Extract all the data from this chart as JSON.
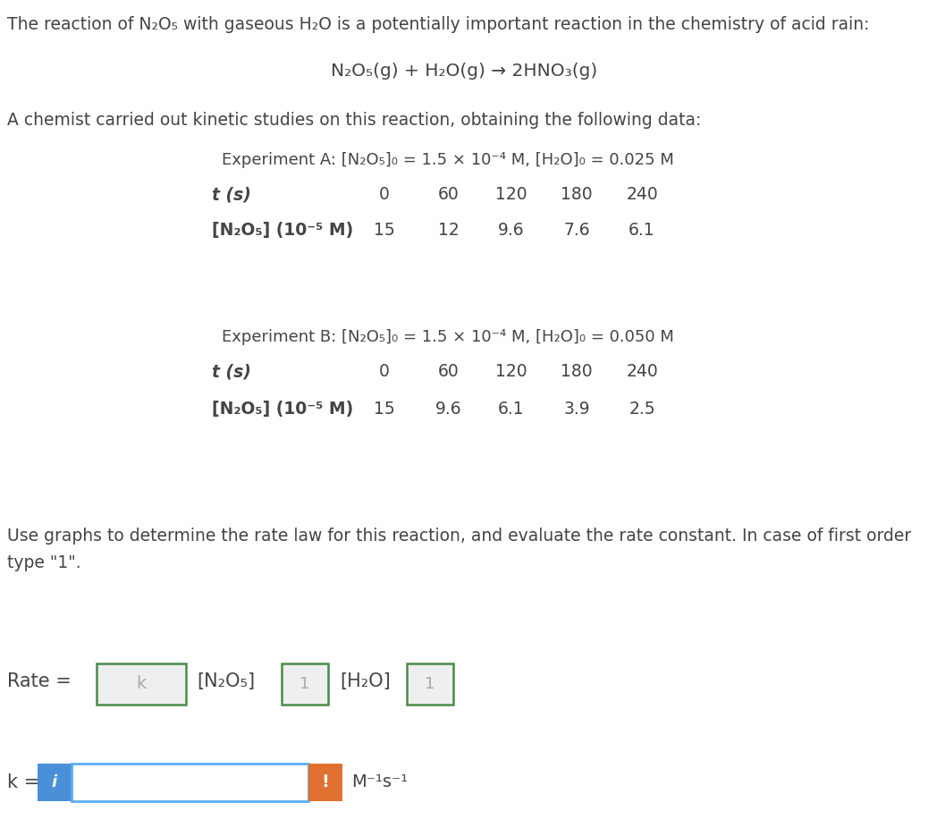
{
  "bg_color": "#ffffff",
  "text_color": "#444444",
  "line1": "The reaction of N₂O₅ with gaseous H₂O is a potentially important reaction in the chemistry of acid rain:",
  "equation": "N₂O₅(g) + H₂O(g) → 2HNO₃(g)",
  "line3": "A chemist carried out kinetic studies on this reaction, obtaining the following data:",
  "exp_a_header": "Experiment A: [N₂O₅]₀ = 1.5 × 10⁻⁴ M, [H₂O]₀ = 0.025 M",
  "exp_b_header": "Experiment B: [N₂O₅]₀ = 1.5 × 10⁻⁴ M, [H₂O]₀ = 0.050 M",
  "t_label": "t (s)",
  "conc_label": "[N₂O₅] (10⁻⁵ M)",
  "t_values": [
    "0",
    "60",
    "120",
    "180",
    "240"
  ],
  "conc_a_values": [
    "15",
    "12",
    "9.6",
    "7.6",
    "6.1"
  ],
  "conc_b_values": [
    "15",
    "9.6",
    "6.1",
    "3.9",
    "2.5"
  ],
  "use_graphs_line1": "Use graphs to determine the rate law for this reaction, and evaluate the rate constant. In case of first order",
  "use_graphs_line2": "type \"1\".",
  "rate_label": "Rate =",
  "k_label": "k =",
  "units_label": "M⁻¹s⁻¹",
  "box_border_color": "#4a8a4a",
  "box_fill_color": "#efefef",
  "box_text_k": "k",
  "box_text_1a": "1",
  "box_text_1b": "1",
  "input_border_color": "#5aacee",
  "input_fill_color": "#ffffff",
  "info_btn_color": "#4a90d9",
  "warn_btn_color": "#e07030",
  "n2o5_label": "[N₂O₅]",
  "h2o_label": "[H₂O]",
  "main_fontsize": 13.5,
  "eq_fontsize": 14.0,
  "label_fontsize": 13.5,
  "rate_fontsize": 15.0
}
